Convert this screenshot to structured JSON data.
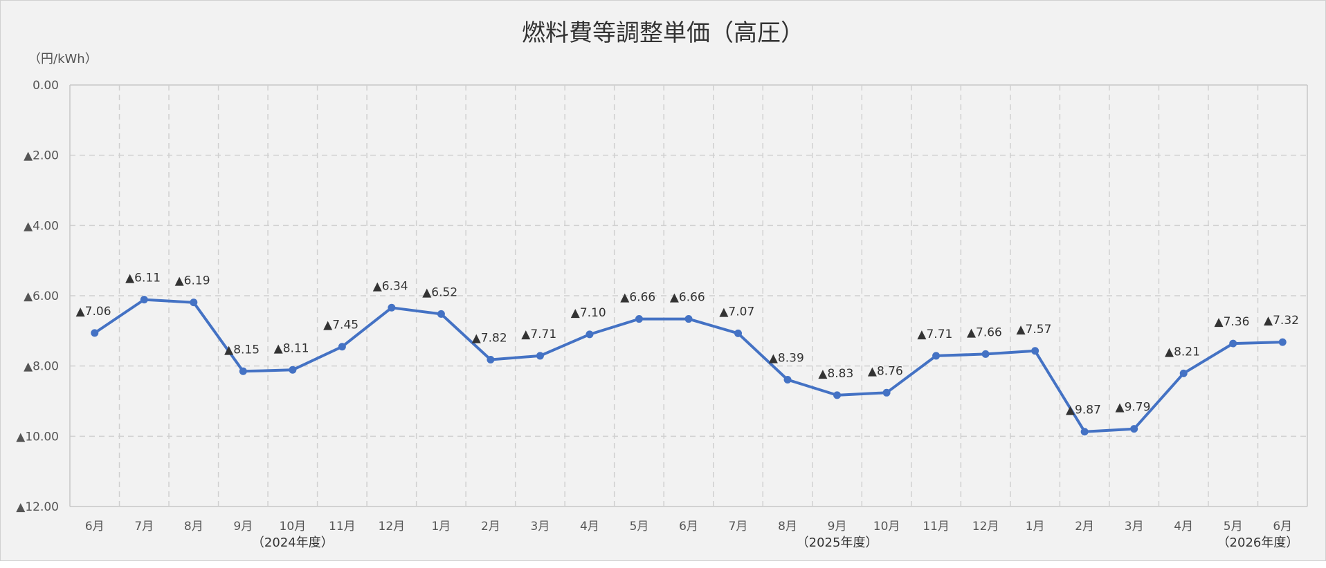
{
  "chart_data": {
    "type": "line",
    "title": "燃料費等調整単価（高圧）",
    "unit_label": "（円/kWh）",
    "y_axis": {
      "min": 0,
      "max": 12,
      "step": 2,
      "reversed": true,
      "tick_labels": [
        "0.00",
        "▲2.00",
        "▲4.00",
        "▲6.00",
        "▲8.00",
        "▲10.00",
        "▲12.00"
      ]
    },
    "grid": true,
    "categories": [
      "6月",
      "7月",
      "8月",
      "9月",
      "10月",
      "11月",
      "12月",
      "1月",
      "2月",
      "3月",
      "4月",
      "5月",
      "6月",
      "7月",
      "8月",
      "9月",
      "10月",
      "11月",
      "12月",
      "1月",
      "2月",
      "3月",
      "4月",
      "5月",
      "6月"
    ],
    "fiscal_year_labels": [
      {
        "text": "（2024年度）",
        "under_category": 4
      },
      {
        "text": "（2025年度）",
        "under_category": 15
      },
      {
        "text": "（2026年度）",
        "under_category": 23.5
      }
    ],
    "series": [
      {
        "color": "#4472c4",
        "values": [
          -7.06,
          -6.11,
          -6.19,
          -8.15,
          -8.11,
          -7.45,
          -6.34,
          -6.52,
          -7.82,
          -7.71,
          -7.1,
          -6.66,
          -6.66,
          -7.07,
          -8.39,
          -8.83,
          -8.76,
          -7.71,
          -7.66,
          -7.57,
          -9.87,
          -9.79,
          -8.21,
          -7.36,
          -7.32
        ],
        "data_labels": [
          "▲7.06",
          "▲6.11",
          "▲6.19",
          "▲8.15",
          "▲8.11",
          "▲7.45",
          "▲6.34",
          "▲6.52",
          "▲7.82",
          "▲7.71",
          "▲7.10",
          "▲6.66",
          "▲6.66",
          "▲7.07",
          "▲8.39",
          "▲8.83",
          "▲8.76",
          "▲7.71",
          "▲7.66",
          "▲7.57",
          "▲9.87",
          "▲9.79",
          "▲8.21",
          "▲7.36",
          "▲7.32"
        ]
      }
    ]
  }
}
